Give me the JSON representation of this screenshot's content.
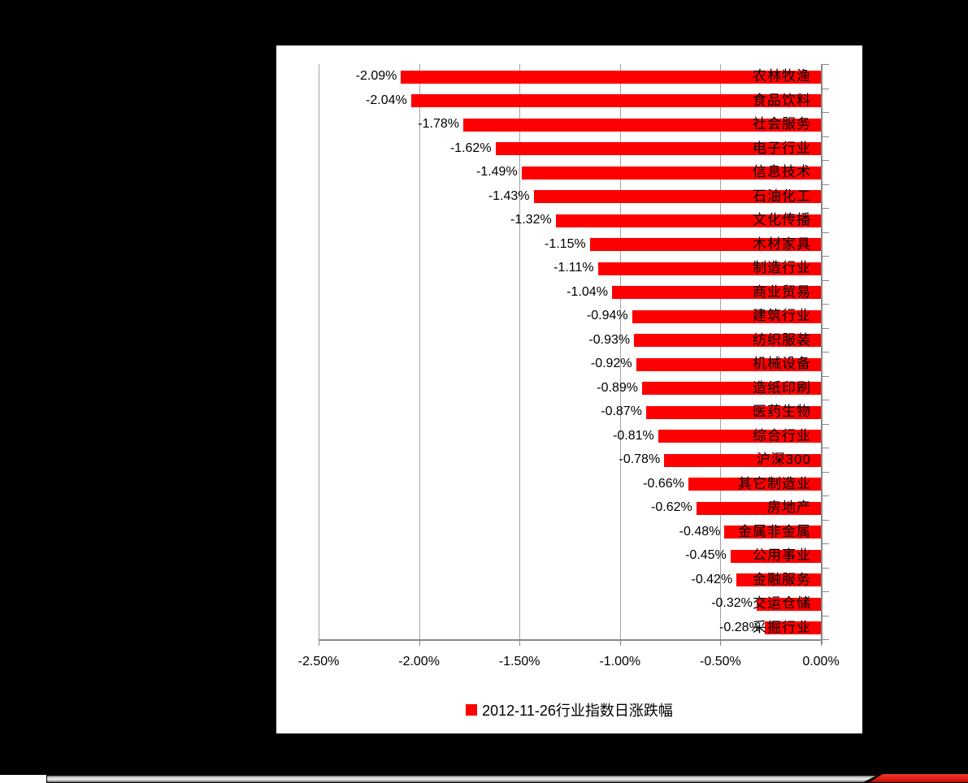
{
  "colors": {
    "page_background": "#000000",
    "panel_background": "#ffffff",
    "bar_red": "#fe0000",
    "gridline_gray": "#a3a3a3",
    "axis_gray": "#898989",
    "footer_red": "#e31b14"
  },
  "chart_data": {
    "type": "bar",
    "orientation": "horizontal",
    "title": "",
    "xlabel": "",
    "ylabel": "",
    "grid": true,
    "legend": "2012-11-26行业指数日涨跌幅",
    "legend_position": "bottom",
    "legend_swatch_color": "#fe0000",
    "xlim": [
      -2.5,
      0
    ],
    "x_tick_values": [
      -2.5,
      -2.0,
      -1.5,
      -1.0,
      -0.5,
      0
    ],
    "x_tick_labels": [
      "-2.50%",
      "-2.00%",
      "-1.50%",
      "-1.00%",
      "-0.50%",
      "0.00%"
    ],
    "bar_color": "#fe0000",
    "categories": [
      "农林牧渔",
      "食品饮料",
      "社会服务",
      "电子行业",
      "信息技术",
      "石油化工",
      "文化传播",
      "木材家具",
      "制造行业",
      "商业贸易",
      "建筑行业",
      "纺织服装",
      "机械设备",
      "造纸印刷",
      "医药生物",
      "综合行业",
      "沪深300",
      "其它制造业",
      "房地产",
      "金属非金属",
      "公用事业",
      "金融服务",
      "交运仓储",
      "采掘行业"
    ],
    "values": [
      -2.09,
      -2.04,
      -1.78,
      -1.62,
      -1.49,
      -1.43,
      -1.32,
      -1.15,
      -1.11,
      -1.04,
      -0.94,
      -0.93,
      -0.92,
      -0.89,
      -0.87,
      -0.81,
      -0.78,
      -0.66,
      -0.62,
      -0.48,
      -0.45,
      -0.42,
      -0.32,
      -0.28
    ],
    "value_labels": [
      "-2.09%",
      "-2.04%",
      "-1.78%",
      "-1.62%",
      "-1.49%",
      "-1.43%",
      "-1.32%",
      "-1.15%",
      "-1.11%",
      "-1.04%",
      "-0.94%",
      "-0.93%",
      "-0.92%",
      "-0.89%",
      "-0.87%",
      "-0.81%",
      "-0.78%",
      "-0.66%",
      "-0.62%",
      "-0.48%",
      "-0.45%",
      "-0.42%",
      "-0.32%",
      "-0.28%"
    ]
  }
}
